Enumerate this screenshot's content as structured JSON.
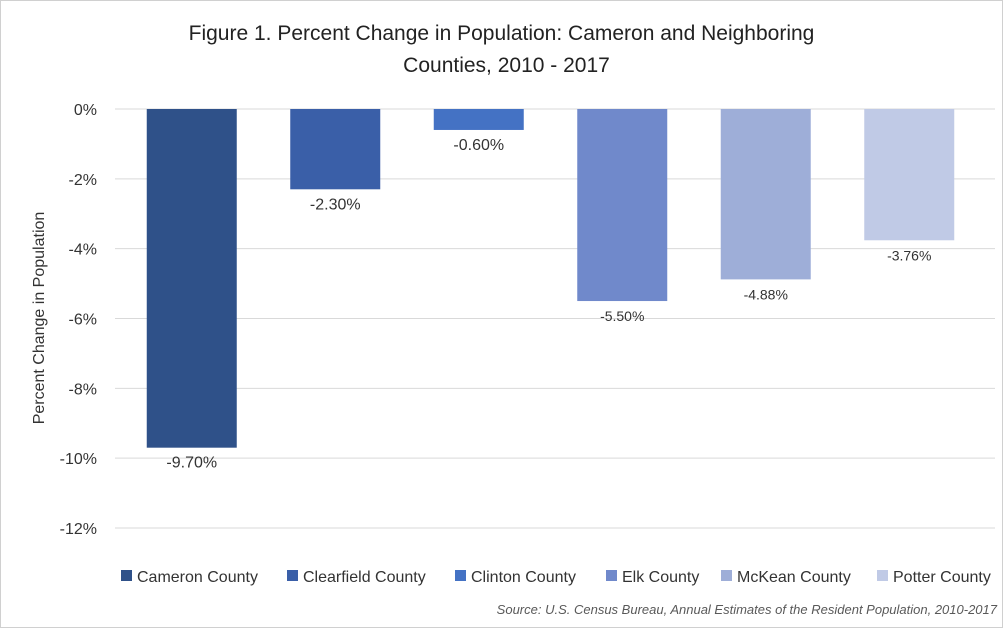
{
  "chart_data": {
    "type": "bar",
    "title_line1": "Figure 1. Percent Change in Population: Cameron and Neighboring",
    "title_line2": "Counties, 2010 - 2017",
    "ylabel": "Percent Change in Population",
    "xlabel": "",
    "ylim": [
      -12,
      0
    ],
    "yticks": [
      0,
      -2,
      -4,
      -6,
      -8,
      -10,
      -12
    ],
    "ytick_labels": [
      "0%",
      "-2%",
      "-4%",
      "-6%",
      "-8%",
      "-10%",
      "-12%"
    ],
    "grid": true,
    "legend_position": "bottom",
    "series": [
      {
        "name": "Cameron County",
        "value": -9.7,
        "label": "-9.70%",
        "color": "#2f5189"
      },
      {
        "name": "Clearfield County",
        "value": -2.3,
        "label": "-2.30%",
        "color": "#3a5fa8"
      },
      {
        "name": "Clinton County",
        "value": -0.6,
        "label": "-0.60%",
        "color": "#4472c4"
      },
      {
        "name": "Elk County",
        "value": -5.5,
        "label": "-5.50%",
        "color": "#7089cb"
      },
      {
        "name": "McKean County",
        "value": -4.88,
        "label": "-4.88%",
        "color": "#9eaed8"
      },
      {
        "name": "Potter County",
        "value": -3.76,
        "label": "-3.76%",
        "color": "#c0cae6"
      }
    ],
    "source": "Source: U.S. Census Bureau, Annual Estimates of the Resident Population, 2010-2017"
  }
}
